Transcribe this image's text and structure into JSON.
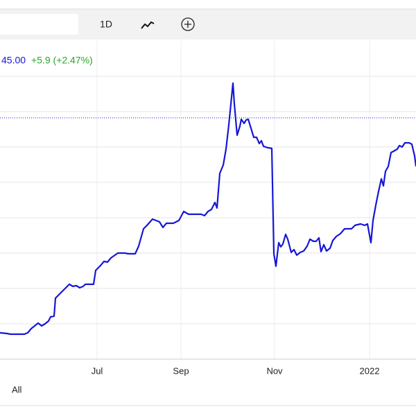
{
  "toolbar": {
    "interval": "1D"
  },
  "quote": {
    "price": "45.00",
    "change": "+5.9 (+2.47%)"
  },
  "chart_data": {
    "type": "line",
    "x": [
      0,
      10,
      15,
      25,
      35,
      40,
      45,
      55,
      60,
      65,
      70,
      73,
      78,
      80,
      85,
      90,
      100,
      105,
      110,
      115,
      120,
      123,
      135,
      138,
      145,
      150,
      155,
      160,
      170,
      180,
      185,
      195,
      200,
      207,
      212,
      220,
      225,
      230,
      235,
      240,
      250,
      258,
      265,
      272,
      280,
      290,
      295,
      300,
      305,
      310,
      313,
      317,
      322,
      326,
      330,
      333,
      336,
      338,
      342,
      346,
      348,
      352,
      355,
      358,
      362,
      366,
      370,
      374,
      377,
      380,
      386,
      392,
      395,
      398,
      402,
      405,
      408,
      412,
      415,
      420,
      424,
      428,
      433,
      438,
      443,
      447,
      452,
      456,
      460,
      463,
      467,
      471,
      476,
      480,
      485,
      491,
      497,
      502,
      507,
      512,
      520,
      526,
      530,
      535,
      538,
      542,
      546,
      550,
      553,
      556,
      560,
      564,
      568,
      573,
      576,
      580,
      584,
      590,
      594,
      598,
      600
    ],
    "series": [
      {
        "color": "#1616d6",
        "values": [
          38,
          37,
          36,
          36,
          36,
          38,
          44,
          52,
          48,
          51,
          55,
          61,
          62,
          88,
          93,
          98,
          108,
          105,
          106,
          103,
          105,
          108,
          108,
          128,
          135,
          141,
          140,
          146,
          153,
          153,
          152,
          152,
          163,
          188,
          193,
          202,
          200,
          198,
          190,
          196,
          196,
          200,
          213,
          209,
          209,
          209,
          207,
          213,
          216,
          226,
          218,
          268,
          280,
          303,
          338,
          368,
          398,
          368,
          323,
          336,
          346,
          340,
          345,
          346,
          333,
          320,
          320,
          311,
          315,
          307,
          305,
          304,
          152,
          134,
          168,
          162,
          166,
          180,
          173,
          154,
          158,
          150,
          154,
          156,
          163,
          173,
          170,
          170,
          175,
          155,
          165,
          156,
          160,
          171,
          177,
          181,
          188,
          188,
          188,
          193,
          195,
          193,
          195,
          168,
          200,
          222,
          242,
          260,
          250,
          271,
          278,
          298,
          300,
          303,
          308,
          306,
          312,
          312,
          310,
          293,
          278
        ]
      }
    ],
    "reference_line": 348,
    "xlim": [
      0,
      600
    ],
    "xticks": [
      {
        "value": 140,
        "label": "Jul"
      },
      {
        "value": 261,
        "label": "Sep"
      },
      {
        "value": 396,
        "label": "Nov"
      },
      {
        "value": 533,
        "label": "2022"
      }
    ],
    "ylim": [
      0,
      459
    ],
    "yticks": [
      51,
      102,
      153,
      204,
      255,
      306,
      357,
      408
    ],
    "grid": true
  },
  "range_selector": {
    "all": "All"
  }
}
